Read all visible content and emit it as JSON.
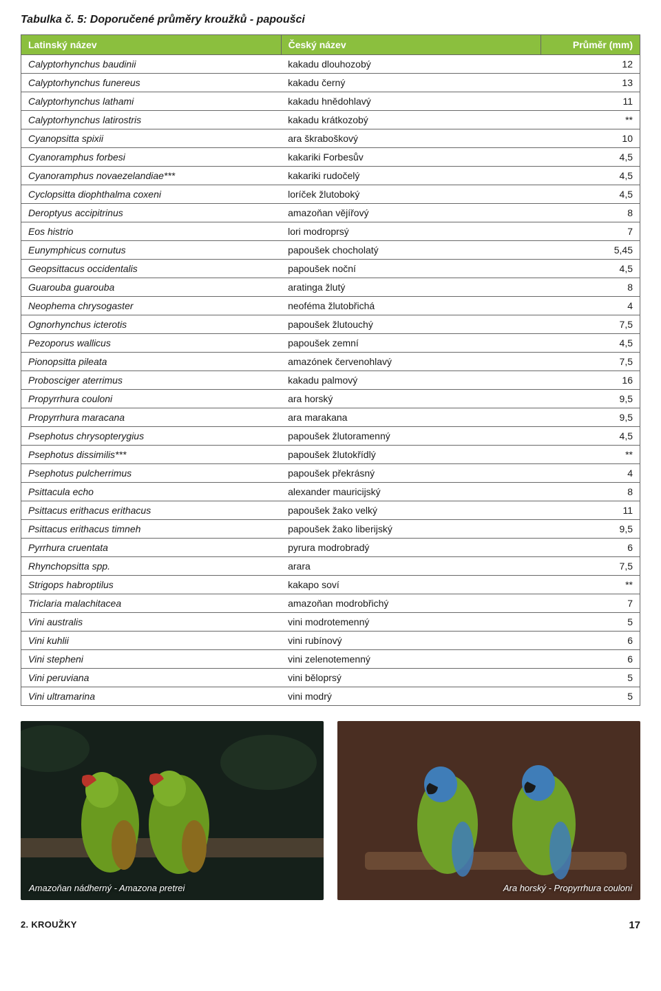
{
  "title": "Tabulka č. 5: Doporučené průměry kroužků - papoušci",
  "table": {
    "header_bg": "#8bbf3e",
    "header_color": "#ffffff",
    "border_color": "#666666",
    "font_size": 14,
    "columns": [
      "Latinský název",
      "Český název",
      "Průměr (mm)"
    ],
    "rows": [
      [
        "Calyptorhynchus baudinii",
        "kakadu dlouhozobý",
        "12"
      ],
      [
        "Calyptorhynchus funereus",
        "kakadu černý",
        "13"
      ],
      [
        "Calyptorhynchus lathami",
        "kakadu hnědohlavý",
        "11"
      ],
      [
        "Calyptorhynchus latirostris",
        "kakadu krátkozobý",
        "**"
      ],
      [
        "Cyanopsitta spixii",
        "ara škraboškový",
        "10"
      ],
      [
        "Cyanoramphus forbesi",
        "kakariki Forbesův",
        "4,5"
      ],
      [
        "Cyanoramphus novaezelandiae***",
        "kakariki rudočelý",
        "4,5"
      ],
      [
        "Cyclopsitta diophthalma coxeni",
        "loríček žlutoboký",
        "4,5"
      ],
      [
        "Deroptyus accipitrinus",
        "amazoňan vějířový",
        "8"
      ],
      [
        "Eos histrio",
        "lori modroprsý",
        "7"
      ],
      [
        "Eunymphicus cornutus",
        "papoušek chocholatý",
        "5,45"
      ],
      [
        "Geopsittacus occidentalis",
        "papoušek noční",
        "4,5"
      ],
      [
        "Guarouba guarouba",
        "aratinga žlutý",
        "8"
      ],
      [
        "Neophema chrysogaster",
        "neoféma žlutobřichá",
        "4"
      ],
      [
        "Ognorhynchus icterotis",
        "papoušek žlutouchý",
        "7,5"
      ],
      [
        "Pezoporus wallicus",
        "papoušek zemní",
        "4,5"
      ],
      [
        "Pionopsitta pileata",
        "amazónek červenohlavý",
        "7,5"
      ],
      [
        "Probosciger aterrimus",
        "kakadu palmový",
        "16"
      ],
      [
        "Propyrrhura couloni",
        "ara horský",
        "9,5"
      ],
      [
        "Propyrrhura maracana",
        "ara marakana",
        "9,5"
      ],
      [
        "Psephotus chrysopterygius",
        "papoušek žlutoramenný",
        "4,5"
      ],
      [
        "Psephotus dissimilis***",
        "papoušek žlutokřídlý",
        "**"
      ],
      [
        "Psephotus pulcherrimus",
        "papoušek překrásný",
        "4"
      ],
      [
        "Psittacula echo",
        "alexander mauricijský",
        "8"
      ],
      [
        "Psittacus erithacus erithacus",
        "papoušek žako velký",
        "11"
      ],
      [
        "Psittacus erithacus timneh",
        "papoušek žako liberijský",
        "9,5"
      ],
      [
        "Pyrrhura cruentata",
        "pyrura modrobradý",
        "6"
      ],
      [
        "Rhynchopsitta spp.",
        "arara",
        "7,5"
      ],
      [
        "Strigops habroptilus",
        "kakapo soví",
        "**"
      ],
      [
        "Triclaria malachitacea",
        "amazoňan modrobřichý",
        "7"
      ],
      [
        "Vini australis",
        "vini modrotemenný",
        "5"
      ],
      [
        "Vini kuhlii",
        "vini rubínový",
        "6"
      ],
      [
        "Vini stepheni",
        "vini zelenotemenný",
        "6"
      ],
      [
        "Vini peruviana",
        "vini běloprsý",
        "5"
      ],
      [
        "Vini ultramarina",
        "vini modrý",
        "5"
      ]
    ]
  },
  "photos": {
    "left": {
      "caption": "Amazoňan nádherný - Amazona pretrei",
      "bg_dark": "#15201a",
      "parrot_green": "#6a9a1f",
      "parrot_red": "#b9352a",
      "branch": "#4a3f30"
    },
    "right": {
      "caption": "Ara horský - Propyrrhura couloni",
      "bg_dark": "#4a2e22",
      "parrot_green": "#6fa028",
      "parrot_blue": "#3f7db8",
      "branch": "#6b4a34"
    }
  },
  "footer": {
    "section": "2. KROUŽKY",
    "page": "17"
  }
}
